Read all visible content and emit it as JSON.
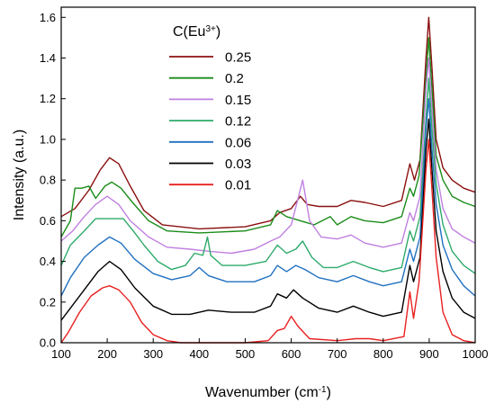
{
  "chart_data": {
    "type": "line",
    "xlabel": "Wavenumber (cm",
    "xlabel_sup": "-1",
    "xlabel_end": ")",
    "ylabel": "Intensity (a.u.)",
    "xlim": [
      100,
      1000
    ],
    "ylim": [
      0,
      1.65
    ],
    "xticks": [
      100,
      200,
      300,
      400,
      500,
      600,
      700,
      800,
      900,
      1000
    ],
    "yticks": [
      0.0,
      0.2,
      0.4,
      0.6,
      0.8,
      1.0,
      1.2,
      1.4,
      1.6
    ],
    "ytick_labels": [
      "0.0",
      "0.2",
      "0.4",
      "0.6",
      "0.8",
      "1.0",
      "1.2",
      "1.4",
      "1.6"
    ],
    "legend": {
      "title": "C(Eu",
      "title_sup": "3+",
      "title_end": ")",
      "placement": "top-left-center"
    },
    "series": [
      {
        "name": "0.25",
        "color": "#8B1010",
        "points": [
          [
            100,
            0.62
          ],
          [
            130,
            0.66
          ],
          [
            160,
            0.75
          ],
          [
            185,
            0.85
          ],
          [
            205,
            0.91
          ],
          [
            225,
            0.88
          ],
          [
            250,
            0.77
          ],
          [
            280,
            0.65
          ],
          [
            320,
            0.58
          ],
          [
            400,
            0.56
          ],
          [
            500,
            0.57
          ],
          [
            555,
            0.6
          ],
          [
            575,
            0.64
          ],
          [
            600,
            0.66
          ],
          [
            620,
            0.72
          ],
          [
            635,
            0.68
          ],
          [
            660,
            0.67
          ],
          [
            700,
            0.67
          ],
          [
            730,
            0.7
          ],
          [
            760,
            0.69
          ],
          [
            800,
            0.67
          ],
          [
            840,
            0.7
          ],
          [
            858,
            0.88
          ],
          [
            868,
            0.8
          ],
          [
            880,
            0.9
          ],
          [
            893,
            1.4
          ],
          [
            899,
            1.6
          ],
          [
            906,
            1.35
          ],
          [
            915,
            1.0
          ],
          [
            930,
            0.86
          ],
          [
            950,
            0.8
          ],
          [
            975,
            0.76
          ],
          [
            1000,
            0.74
          ]
        ]
      },
      {
        "name": "0.2",
        "color": "#1A8C1A",
        "points": [
          [
            100,
            0.52
          ],
          [
            120,
            0.6
          ],
          [
            130,
            0.76
          ],
          [
            145,
            0.76
          ],
          [
            160,
            0.77
          ],
          [
            175,
            0.71
          ],
          [
            195,
            0.77
          ],
          [
            210,
            0.79
          ],
          [
            230,
            0.76
          ],
          [
            255,
            0.69
          ],
          [
            290,
            0.6
          ],
          [
            330,
            0.55
          ],
          [
            400,
            0.54
          ],
          [
            500,
            0.55
          ],
          [
            555,
            0.58
          ],
          [
            570,
            0.65
          ],
          [
            590,
            0.62
          ],
          [
            620,
            0.6
          ],
          [
            650,
            0.58
          ],
          [
            685,
            0.62
          ],
          [
            700,
            0.58
          ],
          [
            730,
            0.62
          ],
          [
            760,
            0.6
          ],
          [
            800,
            0.59
          ],
          [
            840,
            0.62
          ],
          [
            858,
            0.76
          ],
          [
            866,
            0.72
          ],
          [
            878,
            0.82
          ],
          [
            893,
            1.3
          ],
          [
            899,
            1.5
          ],
          [
            906,
            1.25
          ],
          [
            915,
            0.92
          ],
          [
            930,
            0.8
          ],
          [
            950,
            0.72
          ],
          [
            975,
            0.69
          ],
          [
            1000,
            0.67
          ]
        ]
      },
      {
        "name": "0.15",
        "color": "#C080E0",
        "points": [
          [
            100,
            0.5
          ],
          [
            125,
            0.55
          ],
          [
            150,
            0.62
          ],
          [
            175,
            0.68
          ],
          [
            200,
            0.72
          ],
          [
            225,
            0.68
          ],
          [
            250,
            0.6
          ],
          [
            290,
            0.52
          ],
          [
            330,
            0.47
          ],
          [
            380,
            0.46
          ],
          [
            420,
            0.45
          ],
          [
            470,
            0.44
          ],
          [
            520,
            0.46
          ],
          [
            555,
            0.5
          ],
          [
            575,
            0.52
          ],
          [
            600,
            0.58
          ],
          [
            615,
            0.71
          ],
          [
            625,
            0.8
          ],
          [
            640,
            0.6
          ],
          [
            665,
            0.52
          ],
          [
            700,
            0.51
          ],
          [
            730,
            0.53
          ],
          [
            760,
            0.49
          ],
          [
            800,
            0.47
          ],
          [
            840,
            0.49
          ],
          [
            858,
            0.64
          ],
          [
            866,
            0.6
          ],
          [
            880,
            0.72
          ],
          [
            893,
            1.25
          ],
          [
            899,
            1.4
          ],
          [
            906,
            1.15
          ],
          [
            915,
            0.85
          ],
          [
            930,
            0.66
          ],
          [
            950,
            0.56
          ],
          [
            975,
            0.52
          ],
          [
            1000,
            0.49
          ]
        ]
      },
      {
        "name": "0.12",
        "color": "#2EAA6A",
        "points": [
          [
            100,
            0.38
          ],
          [
            120,
            0.48
          ],
          [
            150,
            0.55
          ],
          [
            175,
            0.61
          ],
          [
            210,
            0.61
          ],
          [
            235,
            0.61
          ],
          [
            260,
            0.54
          ],
          [
            280,
            0.48
          ],
          [
            310,
            0.4
          ],
          [
            340,
            0.36
          ],
          [
            370,
            0.38
          ],
          [
            390,
            0.44
          ],
          [
            408,
            0.43
          ],
          [
            418,
            0.52
          ],
          [
            425,
            0.43
          ],
          [
            450,
            0.38
          ],
          [
            500,
            0.38
          ],
          [
            545,
            0.4
          ],
          [
            570,
            0.48
          ],
          [
            590,
            0.44
          ],
          [
            610,
            0.46
          ],
          [
            625,
            0.5
          ],
          [
            645,
            0.42
          ],
          [
            670,
            0.37
          ],
          [
            700,
            0.37
          ],
          [
            735,
            0.4
          ],
          [
            770,
            0.37
          ],
          [
            800,
            0.35
          ],
          [
            840,
            0.37
          ],
          [
            858,
            0.55
          ],
          [
            866,
            0.5
          ],
          [
            880,
            0.62
          ],
          [
            893,
            1.1
          ],
          [
            899,
            1.3
          ],
          [
            906,
            1.05
          ],
          [
            915,
            0.78
          ],
          [
            930,
            0.58
          ],
          [
            950,
            0.45
          ],
          [
            975,
            0.38
          ],
          [
            1000,
            0.34
          ]
        ]
      },
      {
        "name": "0.06",
        "color": "#2070C0",
        "points": [
          [
            100,
            0.23
          ],
          [
            120,
            0.32
          ],
          [
            150,
            0.42
          ],
          [
            180,
            0.48
          ],
          [
            205,
            0.52
          ],
          [
            230,
            0.49
          ],
          [
            260,
            0.41
          ],
          [
            300,
            0.34
          ],
          [
            340,
            0.31
          ],
          [
            380,
            0.33
          ],
          [
            400,
            0.37
          ],
          [
            420,
            0.33
          ],
          [
            460,
            0.3
          ],
          [
            520,
            0.3
          ],
          [
            555,
            0.33
          ],
          [
            570,
            0.38
          ],
          [
            590,
            0.35
          ],
          [
            610,
            0.38
          ],
          [
            630,
            0.36
          ],
          [
            660,
            0.32
          ],
          [
            700,
            0.3
          ],
          [
            735,
            0.33
          ],
          [
            770,
            0.3
          ],
          [
            800,
            0.28
          ],
          [
            840,
            0.3
          ],
          [
            858,
            0.46
          ],
          [
            866,
            0.4
          ],
          [
            880,
            0.52
          ],
          [
            893,
            1.05
          ],
          [
            899,
            1.2
          ],
          [
            906,
            0.95
          ],
          [
            915,
            0.68
          ],
          [
            930,
            0.48
          ],
          [
            950,
            0.36
          ],
          [
            975,
            0.28
          ],
          [
            1000,
            0.23
          ]
        ]
      },
      {
        "name": "0.03",
        "color": "#000000",
        "points": [
          [
            100,
            0.11
          ],
          [
            120,
            0.17
          ],
          [
            150,
            0.26
          ],
          [
            180,
            0.35
          ],
          [
            205,
            0.4
          ],
          [
            230,
            0.36
          ],
          [
            260,
            0.27
          ],
          [
            300,
            0.18
          ],
          [
            340,
            0.14
          ],
          [
            380,
            0.14
          ],
          [
            420,
            0.16
          ],
          [
            470,
            0.15
          ],
          [
            520,
            0.15
          ],
          [
            555,
            0.18
          ],
          [
            570,
            0.24
          ],
          [
            590,
            0.22
          ],
          [
            605,
            0.26
          ],
          [
            625,
            0.22
          ],
          [
            660,
            0.17
          ],
          [
            700,
            0.15
          ],
          [
            735,
            0.18
          ],
          [
            770,
            0.15
          ],
          [
            800,
            0.13
          ],
          [
            840,
            0.15
          ],
          [
            858,
            0.38
          ],
          [
            866,
            0.3
          ],
          [
            880,
            0.42
          ],
          [
            893,
            0.95
          ],
          [
            899,
            1.1
          ],
          [
            906,
            0.85
          ],
          [
            915,
            0.55
          ],
          [
            930,
            0.35
          ],
          [
            950,
            0.22
          ],
          [
            975,
            0.15
          ],
          [
            1000,
            0.12
          ]
        ]
      },
      {
        "name": "0.01",
        "color": "#E82020",
        "points": [
          [
            100,
            0.0
          ],
          [
            115,
            0.05
          ],
          [
            140,
            0.15
          ],
          [
            165,
            0.23
          ],
          [
            190,
            0.27
          ],
          [
            205,
            0.28
          ],
          [
            225,
            0.26
          ],
          [
            250,
            0.2
          ],
          [
            275,
            0.1
          ],
          [
            300,
            0.04
          ],
          [
            330,
            0.01
          ],
          [
            360,
            0.0
          ],
          [
            500,
            0.0
          ],
          [
            550,
            0.01
          ],
          [
            570,
            0.06
          ],
          [
            585,
            0.07
          ],
          [
            600,
            0.13
          ],
          [
            615,
            0.08
          ],
          [
            640,
            0.02
          ],
          [
            700,
            0.01
          ],
          [
            740,
            0.02
          ],
          [
            770,
            0.02
          ],
          [
            800,
            0.01
          ],
          [
            845,
            0.03
          ],
          [
            858,
            0.25
          ],
          [
            866,
            0.12
          ],
          [
            878,
            0.3
          ],
          [
            893,
            0.85
          ],
          [
            899,
            1.0
          ],
          [
            906,
            0.75
          ],
          [
            915,
            0.42
          ],
          [
            930,
            0.15
          ],
          [
            950,
            0.04
          ],
          [
            975,
            0.01
          ],
          [
            1000,
            0.0
          ]
        ]
      }
    ]
  }
}
